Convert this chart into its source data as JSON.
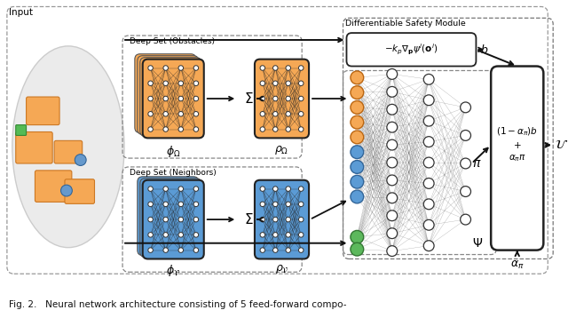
{
  "bg_color": "#ffffff",
  "fig_caption": "Fig. 2.   Neural network architecture consisting of 5 feed-forward compo-",
  "input_label": "Input",
  "ellipse_color": "#ebebeb",
  "obstacle_color": "#f5a855",
  "neighbor_color": "#5b9bd5",
  "green_color": "#5cb85c",
  "white_node_color": "#ffffff",
  "node_edge_color": "#333333",
  "arrow_color": "#111111",
  "dashed_box_color": "#888888",
  "safety_module_label": "Differentiable Safety Module",
  "safety_formula": "$-k_p \\nabla_{\\mathbf{p}} \\psi^i(\\mathbf{o}^i)$",
  "b_label": "$b$",
  "pi_label": "$\\pi$",
  "psi_label": "$\\Psi$",
  "alpha_pi_label": "$\\alpha_\\pi$",
  "u_label": "$\\mathcal{U}$",
  "deep_set_obs_label": "Deep Set (Obstacles)",
  "deep_set_nbr_label": "Deep Set (Neighbors)",
  "phi_obs_label": "$\\phi_\\Omega$",
  "rho_obs_label": "$\\rho_\\Omega$",
  "phi_nbr_label": "$\\phi_\\mathcal{V}$",
  "rho_nbr_label": "$\\rho_\\mathcal{V}$",
  "sigma_label": "$\\Sigma$",
  "combine_line1": "$(1-\\alpha_\\pi)b$",
  "combine_line2": "$+$",
  "combine_line3": "$\\alpha_\\pi\\pi$"
}
